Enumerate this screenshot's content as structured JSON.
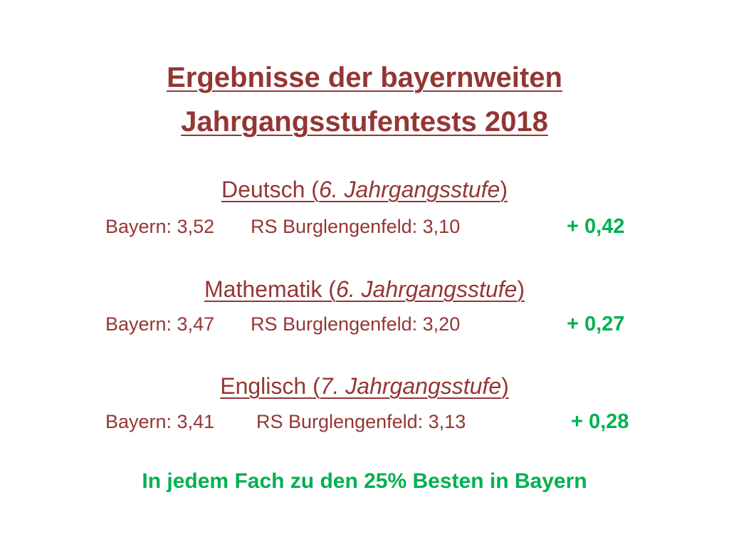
{
  "title": {
    "line1": "Ergebnisse der  bayernweiten",
    "line2": "Jahrgangsstufentests 2018"
  },
  "sections": [
    {
      "subject": "Deutsch",
      "grade_open": " (",
      "grade": "6. Jahrgangsstufe",
      "grade_close": ")",
      "bayern": "Bayern: 3,52",
      "school": "RS Burglengenfeld: 3,10",
      "diff": "+ 0,42"
    },
    {
      "subject": "Mathematik",
      "grade_open": " (",
      "grade": "6. Jahrgangsstufe",
      "grade_close": ")",
      "bayern": "Bayern: 3,47",
      "school": "RS Burglengenfeld: 3,20",
      "diff": "+ 0,27"
    },
    {
      "subject": "Englisch",
      "grade_open": " (",
      "grade": "7. Jahrgangsstufe",
      "grade_close": ")",
      "bayern": "Bayern: 3,41",
      "school": "RS Burglengenfeld: 3,13",
      "diff": "+ 0,28"
    }
  ],
  "conclusion": "In jedem Fach zu den 25% Besten in Bayern",
  "colors": {
    "text": "#943634",
    "positive": "#00b050",
    "background": "#ffffff"
  }
}
